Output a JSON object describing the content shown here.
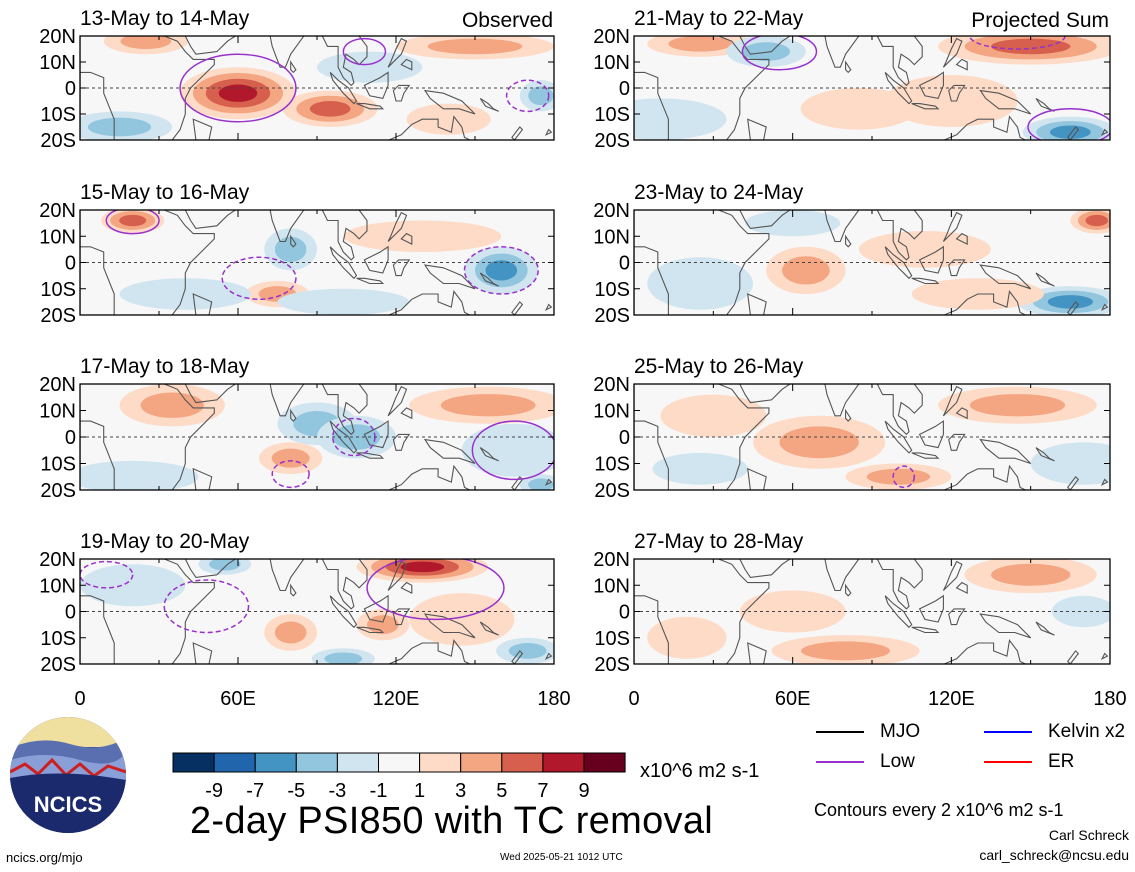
{
  "chart_data": [
    {
      "type": "heatmap",
      "title": "13-May to 14-May",
      "label": "Observed",
      "xticks": [
        "0",
        "60E",
        "120E",
        "180"
      ],
      "yticks": [
        "20N",
        "10N",
        "0",
        "10S",
        "20S"
      ],
      "blobs": [
        [
          60,
          -2,
          22,
          10,
          7
        ],
        [
          25,
          18,
          16,
          5,
          4
        ],
        [
          95,
          -8,
          18,
          7,
          5
        ],
        [
          15,
          -15,
          20,
          6,
          -3
        ],
        [
          110,
          8,
          20,
          6,
          -2
        ],
        [
          150,
          16,
          30,
          5,
          3
        ],
        [
          140,
          -12,
          16,
          6,
          2
        ],
        [
          175,
          -3,
          8,
          6,
          -3
        ]
      ],
      "contours": [
        {
          "kind": "low",
          "style": "solid",
          "center": [
            60,
            0
          ],
          "r": [
            22,
            13
          ]
        },
        {
          "kind": "low",
          "style": "solid",
          "center": [
            108,
            14
          ],
          "r": [
            8,
            5
          ]
        },
        {
          "kind": "low",
          "style": "dashed",
          "center": [
            170,
            -3
          ],
          "r": [
            8,
            6
          ]
        }
      ]
    },
    {
      "type": "heatmap",
      "title": "15-May to 16-May",
      "label": "",
      "xticks": [
        "0",
        "60E",
        "120E",
        "180"
      ],
      "yticks": [
        "20N",
        "10N",
        "0",
        "10S",
        "20S"
      ],
      "blobs": [
        [
          20,
          16,
          12,
          5,
          5
        ],
        [
          160,
          -3,
          14,
          9,
          -5
        ],
        [
          80,
          5,
          10,
          8,
          -4
        ],
        [
          75,
          -12,
          12,
          5,
          4
        ],
        [
          130,
          10,
          30,
          6,
          2
        ],
        [
          40,
          -12,
          25,
          6,
          -2
        ],
        [
          100,
          -15,
          25,
          5,
          -2
        ]
      ],
      "contours": [
        {
          "kind": "low",
          "style": "solid",
          "center": [
            20,
            16
          ],
          "r": [
            10,
            5
          ]
        },
        {
          "kind": "low",
          "style": "dashed",
          "center": [
            160,
            -3
          ],
          "r": [
            14,
            9
          ]
        },
        {
          "kind": "low",
          "style": "dashed",
          "center": [
            68,
            -6
          ],
          "r": [
            14,
            8
          ]
        }
      ]
    },
    {
      "type": "heatmap",
      "title": "17-May to 18-May",
      "label": "",
      "xticks": [
        "0",
        "60E",
        "120E",
        "180"
      ],
      "yticks": [
        "20N",
        "10N",
        "0",
        "10S",
        "20S"
      ],
      "blobs": [
        [
          35,
          12,
          20,
          8,
          4
        ],
        [
          90,
          5,
          15,
          8,
          -3
        ],
        [
          105,
          0,
          15,
          8,
          -3
        ],
        [
          155,
          12,
          30,
          7,
          3
        ],
        [
          80,
          -8,
          12,
          6,
          3
        ],
        [
          165,
          -5,
          20,
          10,
          -2
        ],
        [
          20,
          -15,
          25,
          6,
          -1
        ],
        [
          175,
          -18,
          8,
          4,
          -4
        ]
      ],
      "contours": [
        {
          "kind": "low",
          "style": "solid",
          "center": [
            165,
            -5
          ],
          "r": [
            16,
            11
          ]
        },
        {
          "kind": "low",
          "style": "dashed",
          "center": [
            104,
            0
          ],
          "r": [
            8,
            7
          ]
        },
        {
          "kind": "low",
          "style": "dashed",
          "center": [
            80,
            -14
          ],
          "r": [
            7,
            5
          ]
        }
      ]
    },
    {
      "type": "heatmap",
      "title": "19-May to 20-May",
      "label": "",
      "xticks": [
        "0",
        "60E",
        "120E",
        "180"
      ],
      "yticks": [
        "20N",
        "10N",
        "0",
        "10S",
        "20S"
      ],
      "blobs": [
        [
          130,
          17,
          25,
          6,
          8
        ],
        [
          80,
          -8,
          10,
          7,
          4
        ],
        [
          115,
          -5,
          10,
          6,
          4
        ],
        [
          55,
          18,
          10,
          4,
          -4
        ],
        [
          100,
          -18,
          12,
          4,
          -3
        ],
        [
          170,
          -15,
          12,
          5,
          -4
        ],
        [
          20,
          10,
          20,
          8,
          -2
        ],
        [
          145,
          -3,
          20,
          10,
          2
        ]
      ],
      "contours": [
        {
          "kind": "low",
          "style": "solid",
          "center": [
            135,
            9
          ],
          "r": [
            26,
            12
          ]
        },
        {
          "kind": "low",
          "style": "dashed",
          "center": [
            48,
            2
          ],
          "r": [
            16,
            10
          ]
        },
        {
          "kind": "low",
          "style": "dashed",
          "center": [
            10,
            14
          ],
          "r": [
            10,
            5
          ]
        }
      ]
    },
    {
      "type": "heatmap",
      "title": "21-May to 22-May",
      "label": "Projected Sum",
      "xticks": [
        "0",
        "60E",
        "120E",
        "180"
      ],
      "yticks": [
        "20N",
        "10N",
        "0",
        "10S",
        "20S"
      ],
      "blobs": [
        [
          150,
          16,
          35,
          7,
          5
        ],
        [
          25,
          17,
          20,
          5,
          3
        ],
        [
          165,
          -17,
          18,
          6,
          -6
        ],
        [
          50,
          14,
          15,
          6,
          -3
        ],
        [
          85,
          -8,
          22,
          8,
          1
        ],
        [
          120,
          -5,
          25,
          10,
          2
        ],
        [
          10,
          -12,
          25,
          8,
          -1
        ]
      ],
      "contours": [
        {
          "kind": "low",
          "style": "solid",
          "center": [
            55,
            14
          ],
          "r": [
            14,
            7
          ]
        },
        {
          "kind": "low",
          "style": "solid",
          "center": [
            165,
            -15
          ],
          "r": [
            16,
            7
          ]
        },
        {
          "kind": "low",
          "style": "dashed",
          "center": [
            145,
            20
          ],
          "r": [
            18,
            5
          ]
        }
      ]
    },
    {
      "type": "heatmap",
      "title": "23-May to 24-May",
      "label": "",
      "xticks": [
        "0",
        "60E",
        "120E",
        "180"
      ],
      "yticks": [
        "20N",
        "10N",
        "0",
        "10S",
        "20S"
      ],
      "blobs": [
        [
          175,
          16,
          10,
          5,
          6
        ],
        [
          65,
          -3,
          15,
          9,
          3
        ],
        [
          165,
          -15,
          20,
          6,
          -5
        ],
        [
          60,
          15,
          18,
          5,
          -1
        ],
        [
          110,
          5,
          25,
          7,
          2
        ],
        [
          130,
          -12,
          25,
          6,
          1
        ],
        [
          25,
          -8,
          20,
          10,
          -1
        ]
      ],
      "contours": []
    },
    {
      "type": "heatmap",
      "title": "25-May to 26-May",
      "label": "",
      "xticks": [
        "0",
        "60E",
        "120E",
        "180"
      ],
      "yticks": [
        "20N",
        "10N",
        "0",
        "10S",
        "20S"
      ],
      "blobs": [
        [
          70,
          -2,
          25,
          10,
          4
        ],
        [
          100,
          -15,
          20,
          5,
          4
        ],
        [
          145,
          12,
          30,
          7,
          3
        ],
        [
          170,
          -10,
          20,
          8,
          -2
        ],
        [
          30,
          8,
          20,
          8,
          1
        ],
        [
          25,
          -12,
          18,
          6,
          -1
        ]
      ],
      "contours": [
        {
          "kind": "low",
          "style": "dashed",
          "center": [
            102,
            -15
          ],
          "r": [
            4,
            4
          ]
        }
      ]
    },
    {
      "type": "heatmap",
      "title": "27-May to 28-May",
      "label": "",
      "xticks": [
        "0",
        "60E",
        "120E",
        "180"
      ],
      "yticks": [
        "20N",
        "10N",
        "0",
        "10S",
        "20S"
      ],
      "blobs": [
        [
          80,
          -15,
          28,
          6,
          4
        ],
        [
          150,
          14,
          25,
          7,
          3
        ],
        [
          60,
          0,
          20,
          8,
          2
        ],
        [
          20,
          -10,
          15,
          8,
          1
        ],
        [
          170,
          0,
          12,
          6,
          -1
        ]
      ],
      "contours": []
    }
  ],
  "colorbar": {
    "labels": [
      "-9",
      "-7",
      "-5",
      "-3",
      "-1",
      "1",
      "3",
      "5",
      "7",
      "9"
    ],
    "colors": [
      "#053061",
      "#2166ac",
      "#4393c3",
      "#92c5de",
      "#d1e5f0",
      "#f7f7f7",
      "#fddbc7",
      "#f4a582",
      "#d6604d",
      "#b2182b",
      "#67001f"
    ],
    "units": "x10^6 m2 s-1"
  },
  "legend": [
    {
      "label": "MJO",
      "color": "#000000"
    },
    {
      "label": "Kelvin x2",
      "color": "#0000ff"
    },
    {
      "label": "Low",
      "color": "#9932cc"
    },
    {
      "label": "ER",
      "color": "#ff0000"
    }
  ],
  "title": "2-day PSI850 with TC removal",
  "contour_note": "Contours every 2 x10^6 m2 s-1",
  "author": "Carl Schreck",
  "email": "carl_schreck@ncsu.edu",
  "url": "ncics.org/mjo",
  "timestamp": "Wed 2025-05-21 1012 UTC",
  "logo_text": "NCICS"
}
